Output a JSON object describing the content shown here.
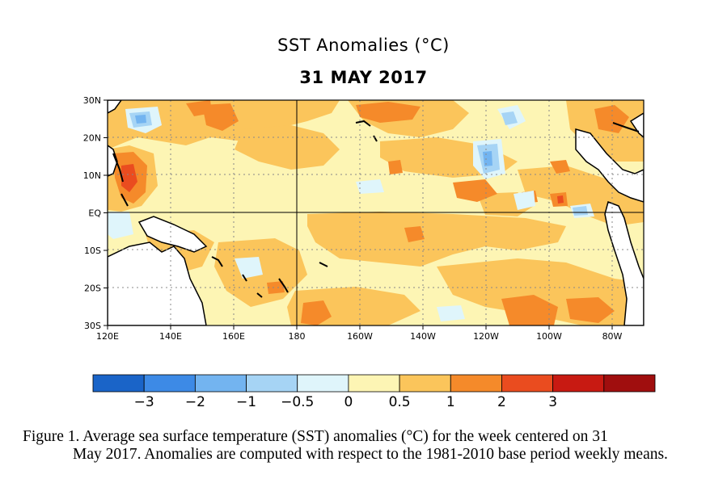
{
  "title": "SST Anomalies (°C)",
  "subtitle": "31 MAY 2017",
  "map": {
    "lat_ticks": [
      "30N",
      "20N",
      "10N",
      "EQ",
      "10S",
      "20S",
      "30S"
    ],
    "lon_ticks": [
      "120E",
      "140E",
      "160E",
      "180",
      "160W",
      "140W",
      "120W",
      "100W",
      "80W"
    ],
    "lon_range": [
      120,
      290
    ],
    "lat_range": [
      -30,
      30
    ]
  },
  "colorbar": {
    "colors": [
      "#1a64c8",
      "#3d8ae6",
      "#73b4f0",
      "#a6d4f5",
      "#dff5fb",
      "#fdf5b4",
      "#fbc55b",
      "#f58a2a",
      "#ea4c1f",
      "#c81a12",
      "#a00e0e"
    ],
    "labels": [
      "−3",
      "−2",
      "−1",
      "−0.5",
      "0",
      "0.5",
      "1",
      "2",
      "3"
    ]
  },
  "caption": {
    "line1": "Figure 1. Average sea surface temperature (SST) anomalies (°C) for the week centered on 31",
    "rest": "May 2017.  Anomalies are computed with respect to the 1981-2010 base period weekly means."
  }
}
